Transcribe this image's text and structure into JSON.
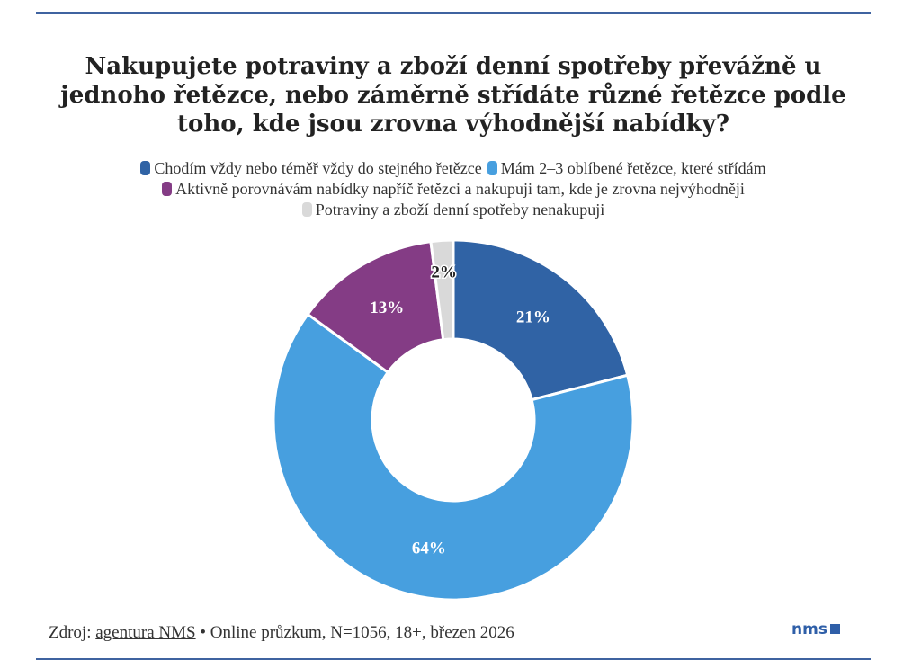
{
  "chart_data": {
    "type": "pie",
    "donut": true,
    "title": "Nakupujete potraviny a zboží denní spotřeby převážně u jednoho řetězce, nebo záměrně střídáte různé řetězce podle toho, kde jsou zrovna výhodnější nabídky?",
    "legend_position": "top",
    "slices": [
      {
        "label": "Chodím vždy nebo téměř vždy do stejného řetězce",
        "value": 21,
        "data_label": "21%",
        "color": "#3063a5"
      },
      {
        "label": "Mám 2–3 oblíbené řetězce, které střídám",
        "value": 64,
        "data_label": "64%",
        "color": "#479fdf"
      },
      {
        "label": "Aktivně porovnávám nabídky napříč řetězci a nakupuji tam, kde je zrovna nejvýhodněji",
        "value": 13,
        "data_label": "13%",
        "color": "#843c85"
      },
      {
        "label": "Potraviny a zboží denní spotřeby nenakupuji",
        "value": 2,
        "data_label": "2%",
        "color": "#d9d9d9"
      }
    ]
  },
  "footer": {
    "prefix": "Zdroj: ",
    "source_link": "agentura NMS",
    "details": " • Online průzkum, N=1056, 18+, březen 2026"
  },
  "logo": "nms"
}
